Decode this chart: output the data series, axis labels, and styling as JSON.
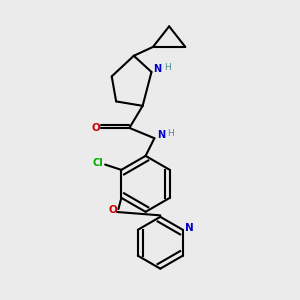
{
  "background_color": "#ebebeb",
  "bond_color": "#000000",
  "atom_colors": {
    "N": "#0000cc",
    "O": "#cc0000",
    "Cl": "#00aa00",
    "H": "#4a9090",
    "C": "#000000"
  },
  "figsize": [
    3.0,
    3.0
  ],
  "dpi": 100
}
